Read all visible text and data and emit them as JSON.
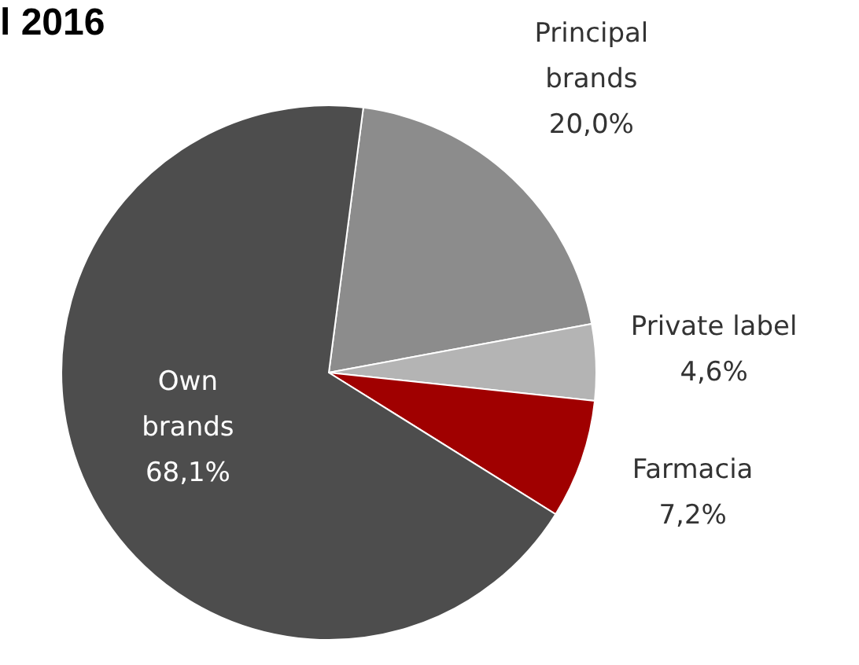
{
  "chart_data": {
    "type": "pie",
    "title": "l 2016",
    "categories": [
      "Principal brands",
      "Private label",
      "Farmacia",
      "Own brands"
    ],
    "values": [
      20.0,
      4.6,
      7.2,
      68.1
    ],
    "colors": [
      "#8c8c8c",
      "#b4b4b4",
      "#a00000",
      "#4d4d4d"
    ],
    "value_labels": [
      "20,0%",
      "4,6%",
      "7,2%",
      "68,1%"
    ],
    "legend": false
  }
}
